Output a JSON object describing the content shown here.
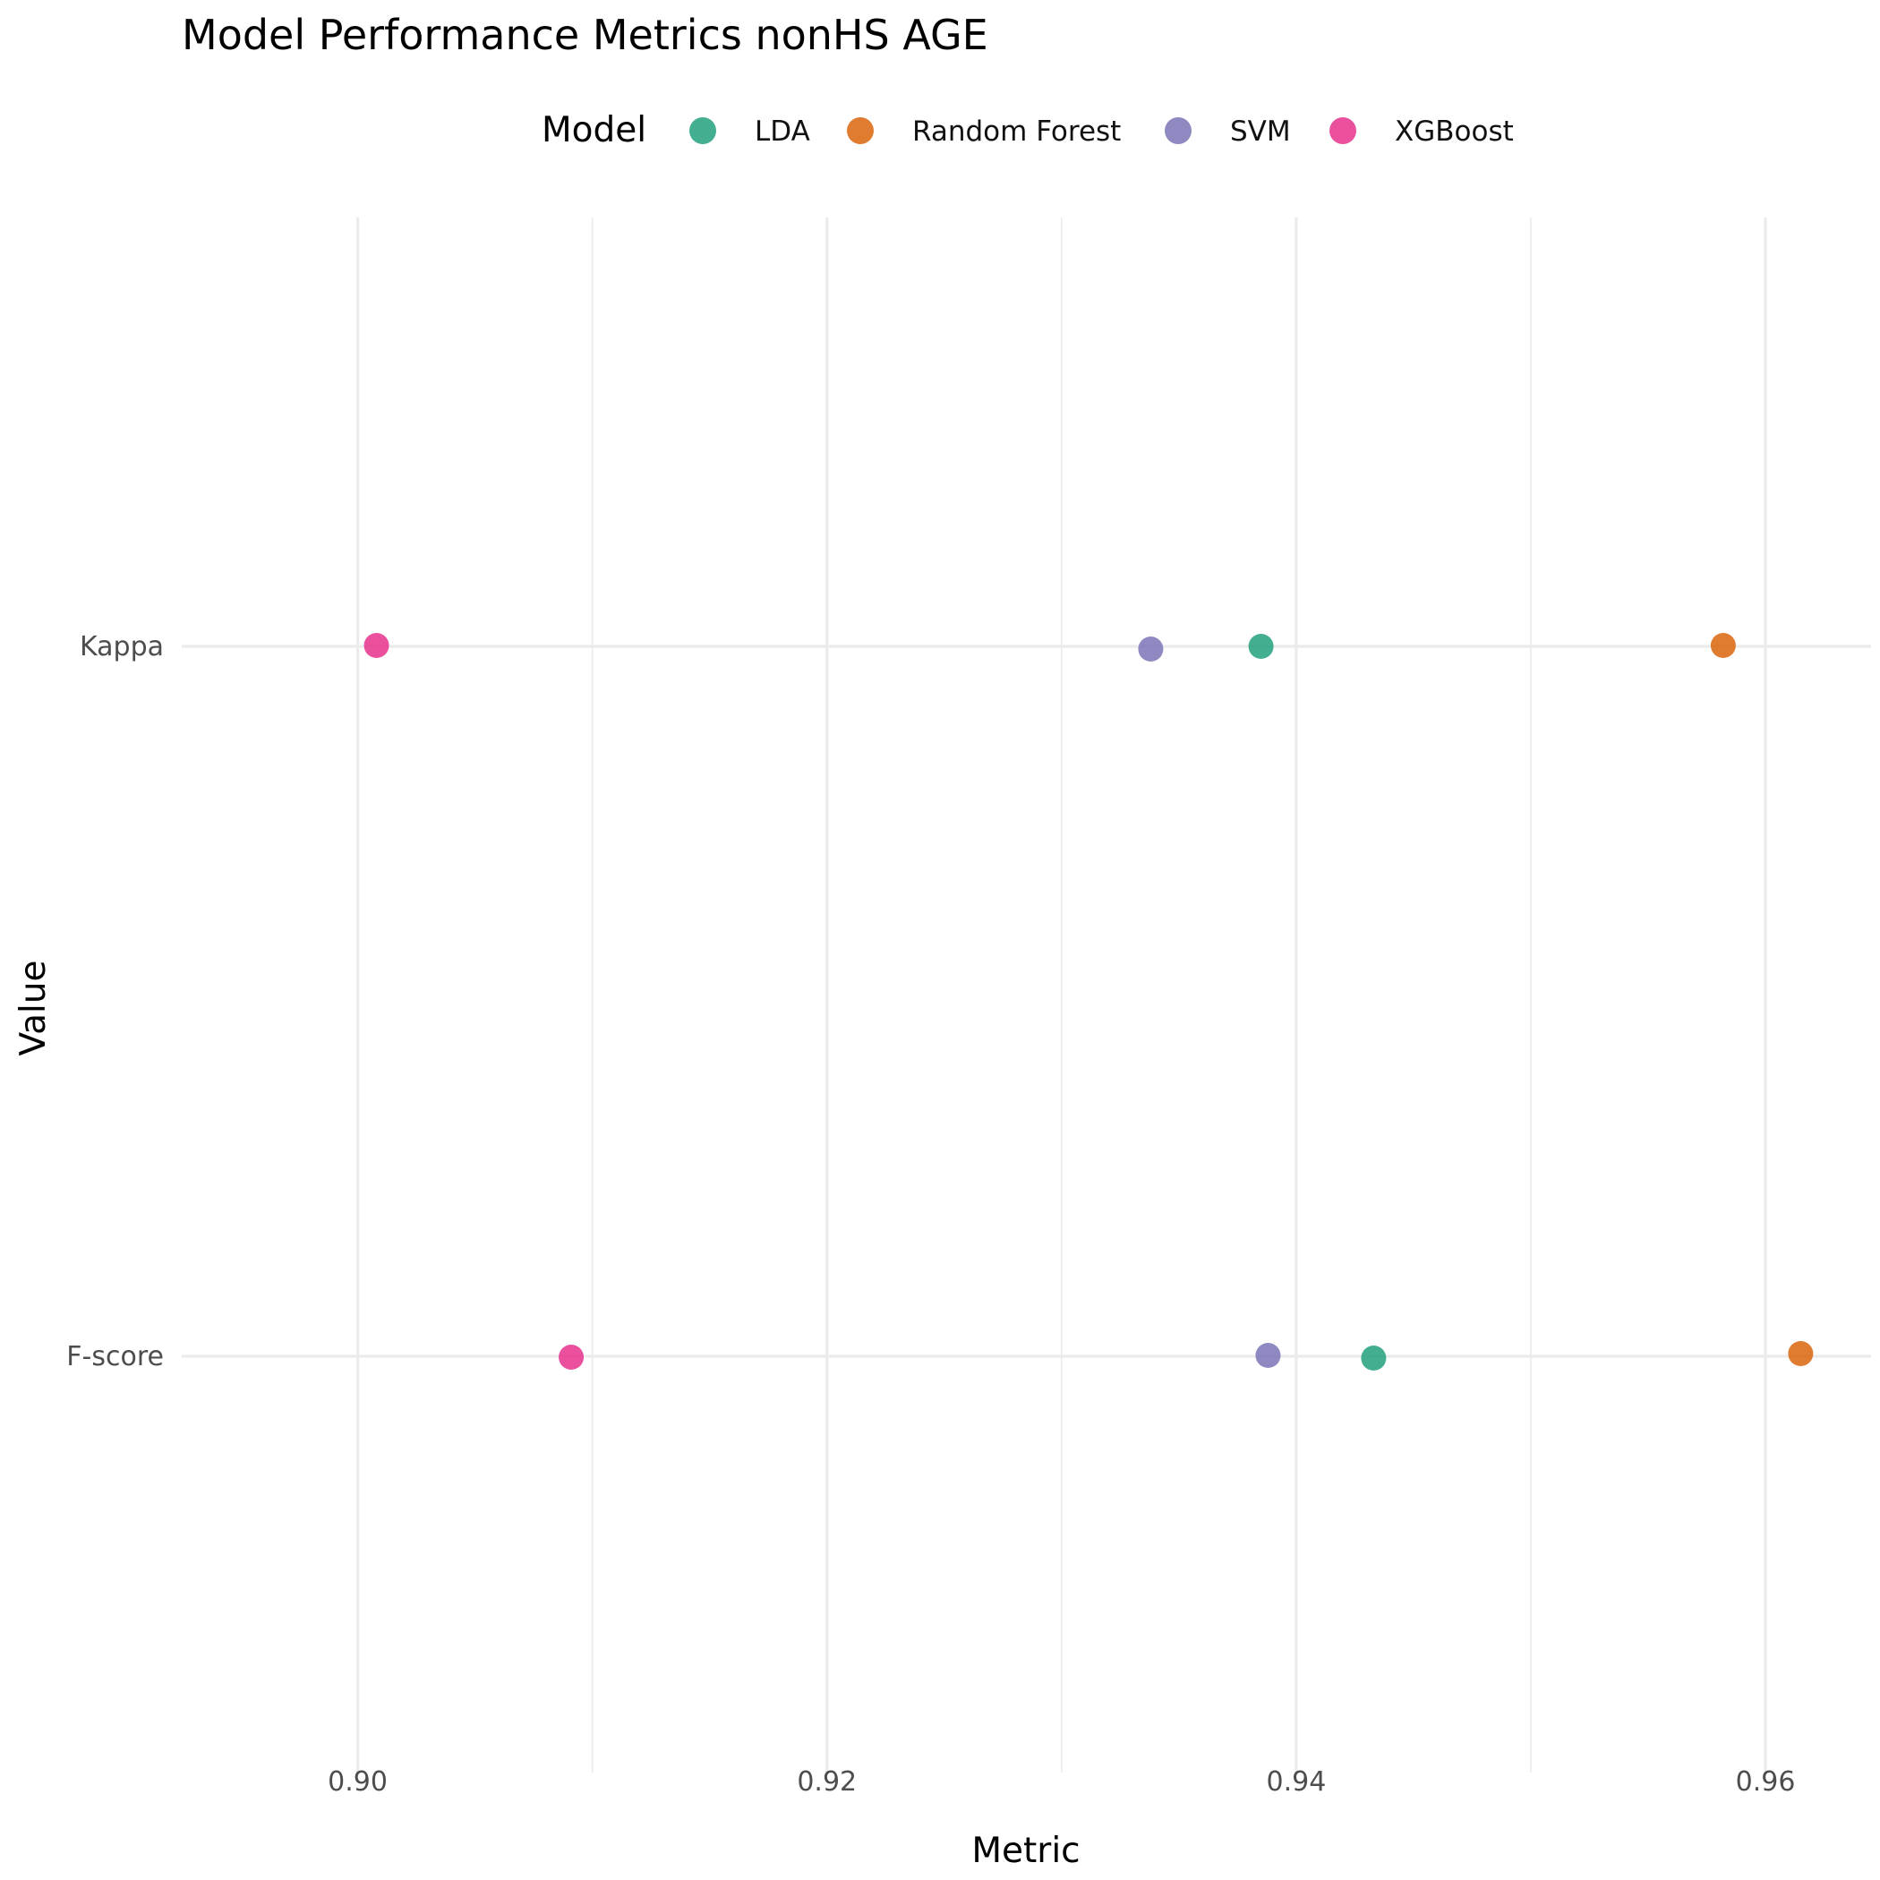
{
  "chart_data": {
    "type": "scatter",
    "title": "Model Performance Metrics nonHS AGE",
    "xlabel": "Metric",
    "ylabel": "Value",
    "xlim": [
      0.8925,
      0.9645
    ],
    "x_ticks": [
      0.9,
      0.92,
      0.94,
      0.96
    ],
    "x_tick_labels": [
      "0.90",
      "0.92",
      "0.94",
      "0.96"
    ],
    "categories": [
      "Kappa",
      "F-score"
    ],
    "legend": {
      "title": "Model",
      "position": "top"
    },
    "grid": true,
    "series": [
      {
        "name": "LDA",
        "color": "#1B9E77",
        "points": [
          {
            "category": "Kappa",
            "x": 0.9385
          },
          {
            "category": "F-score",
            "x": 0.9433
          }
        ]
      },
      {
        "name": "Random Forest",
        "color": "#D95F02",
        "points": [
          {
            "category": "Kappa",
            "x": 0.9582
          },
          {
            "category": "F-score",
            "x": 0.9615
          }
        ]
      },
      {
        "name": "SVM",
        "color": "#7570B3",
        "points": [
          {
            "category": "Kappa",
            "x": 0.9338
          },
          {
            "category": "F-score",
            "x": 0.9388
          }
        ]
      },
      {
        "name": "XGBoost",
        "color": "#E7298A",
        "points": [
          {
            "category": "Kappa",
            "x": 0.9008
          },
          {
            "category": "F-score",
            "x": 0.9091
          }
        ]
      }
    ]
  }
}
